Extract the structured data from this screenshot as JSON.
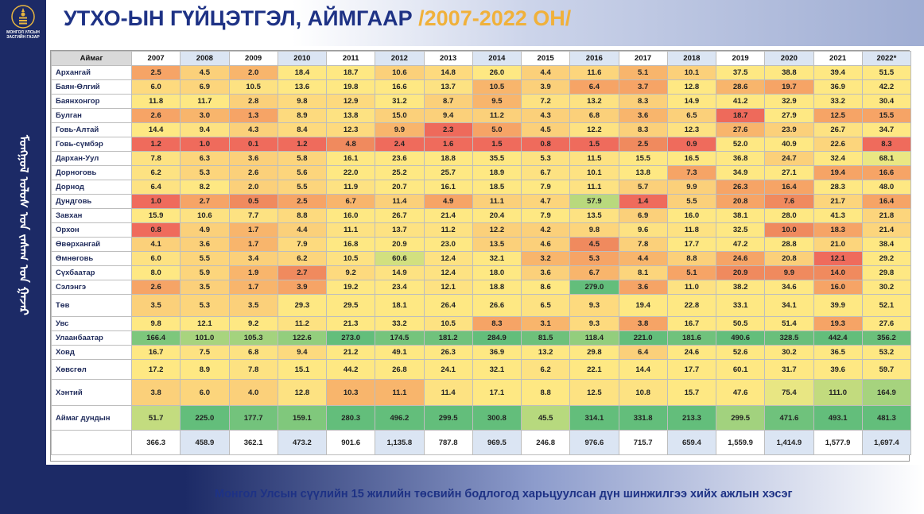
{
  "header": {
    "title": "УТХО-ЫН ГҮЙЦЭТГЭЛ, АЙМГААР",
    "title_years": "/2007-2022 ОН/"
  },
  "logo": {
    "text": "МОНГОЛ УЛСЫН ЗАСГИЙН ГАЗАР",
    "vertical_text": "ᠮᠣᠩᠭᠣᠯ ᠤᠯᠤᠰ ᠤᠨ ᠵᠠᠰᠠᠭ ᠤᠨ ᠭᠠᠵᠠᠷ"
  },
  "footer": {
    "text": "Монгол Улсын сүүлийн 15 жилийн төсвийн бодлогод харьцуулсан дүн шинжилгээ хийх ажлын хэсэг"
  },
  "table": {
    "corner": "Аймаг",
    "years": [
      "2007",
      "2008",
      "2009",
      "2010",
      "2011",
      "2012",
      "2013",
      "2014",
      "2015",
      "2016",
      "2017",
      "2018",
      "2019",
      "2020",
      "2021",
      "2022*"
    ],
    "rows": [
      {
        "name": "Архангай",
        "values": [
          "2.5",
          "4.5",
          "2.0",
          "18.4",
          "18.7",
          "10.6",
          "14.8",
          "26.0",
          "4.4",
          "11.6",
          "5.1",
          "10.1",
          "37.5",
          "38.8",
          "39.4",
          "51.5"
        ],
        "colors": [
          "#f6a466",
          "#fbd07a",
          "#f8b56c",
          "#fee883",
          "#fee883",
          "#fbd07a",
          "#fdda7e",
          "#fee883",
          "#fbd07a",
          "#fcd57c",
          "#f8b56c",
          "#fbd07a",
          "#fee883",
          "#fee883",
          "#fee883",
          "#fee883"
        ]
      },
      {
        "name": "Баян-Өлгий",
        "values": [
          "6.0",
          "6.9",
          "10.5",
          "13.6",
          "19.8",
          "16.6",
          "13.7",
          "10.5",
          "3.9",
          "6.4",
          "3.7",
          "12.8",
          "28.6",
          "19.7",
          "36.9",
          "42.2"
        ],
        "colors": [
          "#fdda7e",
          "#fcd57c",
          "#fde282",
          "#fee883",
          "#fee883",
          "#fee883",
          "#fde282",
          "#f8b56c",
          "#fbd07a",
          "#f6a466",
          "#f6a466",
          "#fee883",
          "#f8b56c",
          "#f6a466",
          "#fee883",
          "#fee883"
        ]
      },
      {
        "name": "Баянхонгор",
        "values": [
          "11.8",
          "11.7",
          "2.8",
          "9.8",
          "12.9",
          "31.2",
          "8.7",
          "9.5",
          "7.2",
          "13.2",
          "8.3",
          "14.9",
          "41.2",
          "32.9",
          "33.2",
          "30.4"
        ],
        "colors": [
          "#fee883",
          "#fee883",
          "#fbd07a",
          "#fdda7e",
          "#fdda7e",
          "#fee883",
          "#fbd07a",
          "#f8b56c",
          "#fde282",
          "#fde282",
          "#fbd07a",
          "#fee883",
          "#fee883",
          "#fee883",
          "#fee883",
          "#fee883"
        ]
      },
      {
        "name": "Булган",
        "values": [
          "2.6",
          "3.0",
          "1.3",
          "8.9",
          "13.8",
          "15.0",
          "9.4",
          "11.2",
          "4.3",
          "6.8",
          "3.6",
          "6.5",
          "18.7",
          "27.9",
          "12.5",
          "15.5"
        ],
        "colors": [
          "#f6a466",
          "#f8b56c",
          "#f6a466",
          "#fdda7e",
          "#fde282",
          "#fbd07a",
          "#fbd07a",
          "#fbd07a",
          "#fbd07a",
          "#fbd07a",
          "#f8b56c",
          "#fbd07a",
          "#ee6a5b",
          "#fee883",
          "#f6a466",
          "#f6a466"
        ]
      },
      {
        "name": "Говь-Алтай",
        "values": [
          "14.4",
          "9.4",
          "4.3",
          "8.4",
          "12.3",
          "9.9",
          "2.3",
          "5.0",
          "4.5",
          "12.2",
          "8.3",
          "12.3",
          "27.6",
          "23.9",
          "26.7",
          "34.7"
        ],
        "colors": [
          "#fee883",
          "#fde282",
          "#fbd07a",
          "#fdda7e",
          "#fdda7e",
          "#f8b56c",
          "#ee6a5b",
          "#f6a466",
          "#fbd07a",
          "#fde282",
          "#fbd07a",
          "#fde282",
          "#f8b56c",
          "#fbd07a",
          "#fde282",
          "#fee883"
        ]
      },
      {
        "name": "Говь-сүмбэр",
        "values": [
          "1.2",
          "1.0",
          "0.1",
          "1.2",
          "4.8",
          "2.4",
          "1.6",
          "1.5",
          "0.8",
          "1.5",
          "2.5",
          "0.9",
          "52.0",
          "40.9",
          "22.6",
          "8.3"
        ],
        "colors": [
          "#ef6b5c",
          "#ef6b5c",
          "#ef6b5c",
          "#ef6b5c",
          "#f08a5e",
          "#ef6b5c",
          "#ef6b5c",
          "#ef6b5c",
          "#ef6b5c",
          "#ef6b5c",
          "#f08a5e",
          "#ef6b5c",
          "#fee883",
          "#fee883",
          "#fcd57c",
          "#ef6b5c"
        ]
      },
      {
        "name": "Дархан-Уул",
        "values": [
          "7.8",
          "6.3",
          "3.6",
          "5.8",
          "16.1",
          "23.6",
          "18.8",
          "35.5",
          "5.3",
          "11.5",
          "15.5",
          "16.5",
          "36.8",
          "24.7",
          "32.4",
          "68.1"
        ],
        "colors": [
          "#fde282",
          "#fcd57c",
          "#fbd07a",
          "#fcd57c",
          "#fee883",
          "#fee883",
          "#fee883",
          "#fee883",
          "#fde282",
          "#fde282",
          "#fee883",
          "#fee883",
          "#fee883",
          "#fbd07a",
          "#fee883",
          "#eae783"
        ]
      },
      {
        "name": "Дорноговь",
        "values": [
          "6.2",
          "5.3",
          "2.6",
          "5.6",
          "22.0",
          "25.2",
          "25.7",
          "18.9",
          "6.7",
          "10.1",
          "13.8",
          "7.3",
          "34.9",
          "27.1",
          "19.4",
          "16.6"
        ],
        "colors": [
          "#fde282",
          "#fcd57c",
          "#fbd07a",
          "#fcd57c",
          "#fee883",
          "#fee883",
          "#fee883",
          "#fee883",
          "#fde282",
          "#fde282",
          "#fee883",
          "#f6a466",
          "#fee883",
          "#fee883",
          "#f6a466",
          "#f6a466"
        ]
      },
      {
        "name": "Дорнод",
        "values": [
          "6.4",
          "8.2",
          "2.0",
          "5.5",
          "11.9",
          "20.7",
          "16.1",
          "18.5",
          "7.9",
          "11.1",
          "5.7",
          "9.9",
          "26.3",
          "16.4",
          "28.3",
          "48.0"
        ],
        "colors": [
          "#fde282",
          "#fee883",
          "#fbd07a",
          "#fcd57c",
          "#fde282",
          "#fee883",
          "#fee883",
          "#fee883",
          "#fee883",
          "#fde282",
          "#fbd07a",
          "#fbd07a",
          "#f6a466",
          "#f6a466",
          "#fee883",
          "#fee883"
        ]
      },
      {
        "name": "Дундговь",
        "values": [
          "1.0",
          "2.7",
          "0.5",
          "2.5",
          "6.7",
          "11.4",
          "4.9",
          "11.1",
          "4.7",
          "57.9",
          "1.4",
          "5.5",
          "20.8",
          "7.6",
          "21.7",
          "16.4"
        ],
        "colors": [
          "#ef6b5c",
          "#f6a466",
          "#f08a5e",
          "#f6a466",
          "#f8b56c",
          "#fbd07a",
          "#f6a466",
          "#fbd07a",
          "#fcd57c",
          "#b9d97d",
          "#ef6b5c",
          "#fbd07a",
          "#f6a466",
          "#f08a5e",
          "#fcd57c",
          "#f6a466"
        ]
      },
      {
        "name": "Завхан",
        "values": [
          "15.9",
          "10.6",
          "7.7",
          "8.8",
          "16.0",
          "26.7",
          "21.4",
          "20.4",
          "7.9",
          "13.5",
          "6.9",
          "16.0",
          "38.1",
          "28.0",
          "41.3",
          "21.8"
        ],
        "colors": [
          "#fee883",
          "#fde282",
          "#fde282",
          "#fdda7e",
          "#fee883",
          "#fee883",
          "#fee883",
          "#fee883",
          "#fee883",
          "#fde282",
          "#fbd07a",
          "#fee883",
          "#fee883",
          "#fee883",
          "#fee883",
          "#fcd57c"
        ]
      },
      {
        "name": "Орхон",
        "values": [
          "0.8",
          "4.9",
          "1.7",
          "4.4",
          "11.1",
          "13.7",
          "11.2",
          "12.2",
          "4.2",
          "9.8",
          "9.6",
          "11.8",
          "32.5",
          "10.0",
          "18.3",
          "21.4"
        ],
        "colors": [
          "#ef6b5c",
          "#fbd07a",
          "#f8b56c",
          "#fbd07a",
          "#fde282",
          "#fde282",
          "#fde282",
          "#fbd07a",
          "#fbd07a",
          "#fcd57c",
          "#fde282",
          "#fde282",
          "#fee883",
          "#f08a5e",
          "#f6a466",
          "#fcd57c"
        ]
      },
      {
        "name": "Өвөрхангай",
        "values": [
          "4.1",
          "3.6",
          "1.7",
          "7.9",
          "16.8",
          "20.9",
          "23.0",
          "13.5",
          "4.6",
          "4.5",
          "7.8",
          "17.7",
          "47.2",
          "28.8",
          "21.0",
          "38.4"
        ],
        "colors": [
          "#fbd07a",
          "#fbd07a",
          "#f8b56c",
          "#fdda7e",
          "#fee883",
          "#fee883",
          "#fee883",
          "#fbd07a",
          "#fbd07a",
          "#f08a5e",
          "#fbd07a",
          "#fee883",
          "#fee883",
          "#fee883",
          "#fcd57c",
          "#fee883"
        ]
      },
      {
        "name": "Өмнөговь",
        "values": [
          "6.0",
          "5.5",
          "3.4",
          "6.2",
          "10.5",
          "60.6",
          "12.4",
          "32.1",
          "3.2",
          "5.3",
          "4.4",
          "8.8",
          "24.6",
          "20.8",
          "12.1",
          "29.2"
        ],
        "colors": [
          "#fde282",
          "#fcd57c",
          "#fbd07a",
          "#fcd57c",
          "#fde282",
          "#d2e07f",
          "#fde282",
          "#fee883",
          "#f8b56c",
          "#f6a466",
          "#f8b56c",
          "#fbd07a",
          "#f6a466",
          "#fbd07a",
          "#ef6b5c",
          "#fee883"
        ]
      },
      {
        "name": "Сүхбаатар",
        "values": [
          "8.0",
          "5.9",
          "1.9",
          "2.7",
          "9.2",
          "14.9",
          "12.4",
          "18.0",
          "3.6",
          "6.7",
          "8.1",
          "5.1",
          "20.9",
          "9.9",
          "14.0",
          "29.8"
        ],
        "colors": [
          "#fee883",
          "#fcd57c",
          "#f8b56c",
          "#f08a5e",
          "#fdda7e",
          "#fde282",
          "#fde282",
          "#fee883",
          "#fbd07a",
          "#f8b56c",
          "#fcd57c",
          "#f6a466",
          "#f08a5e",
          "#f08a5e",
          "#f08a5e",
          "#fee883"
        ]
      },
      {
        "name": "Сэлэнгэ",
        "values": [
          "2.6",
          "3.5",
          "1.7",
          "3.9",
          "19.2",
          "23.4",
          "12.1",
          "18.8",
          "8.6",
          "279.0",
          "3.6",
          "11.0",
          "38.2",
          "34.6",
          "16.0",
          "30.2"
        ],
        "colors": [
          "#f6a466",
          "#fbd07a",
          "#f8b56c",
          "#f6a466",
          "#fee883",
          "#fee883",
          "#fde282",
          "#fee883",
          "#fee883",
          "#63be7b",
          "#f6a466",
          "#fde282",
          "#fee883",
          "#fee883",
          "#f6a466",
          "#fee883"
        ]
      },
      {
        "name": "Төв",
        "values": [
          "3.5",
          "5.3",
          "3.5",
          "29.3",
          "29.5",
          "18.1",
          "26.4",
          "26.6",
          "6.5",
          "9.3",
          "19.4",
          "22.8",
          "33.1",
          "34.1",
          "39.9",
          "52.1"
        ],
        "colors": [
          "#fbd07a",
          "#fcd57c",
          "#fbd07a",
          "#fee883",
          "#fee883",
          "#fee883",
          "#fee883",
          "#fee883",
          "#fde282",
          "#fdda7e",
          "#fee883",
          "#fee883",
          "#fee883",
          "#fee883",
          "#fee883",
          "#fee883"
        ]
      },
      {
        "name": "Увс",
        "values": [
          "9.8",
          "12.1",
          "9.2",
          "11.2",
          "21.3",
          "33.2",
          "10.5",
          "8.3",
          "3.1",
          "9.3",
          "3.8",
          "16.7",
          "50.5",
          "51.4",
          "19.3",
          "27.6"
        ],
        "colors": [
          "#fee883",
          "#fee883",
          "#fee883",
          "#fde282",
          "#fee883",
          "#fee883",
          "#fde282",
          "#f6a466",
          "#f8b56c",
          "#fdda7e",
          "#f6a466",
          "#fee883",
          "#fee883",
          "#fee883",
          "#f6a466",
          "#fee883"
        ]
      },
      {
        "name": "Улаанбаатар",
        "values": [
          "166.4",
          "101.0",
          "105.3",
          "122.6",
          "273.0",
          "174.5",
          "181.2",
          "284.9",
          "81.5",
          "118.4",
          "221.0",
          "181.6",
          "490.6",
          "328.5",
          "442.4",
          "356.2"
        ],
        "colors": [
          "#7dc77c",
          "#a8d47e",
          "#a4d37e",
          "#93ce7d",
          "#63be7b",
          "#75c47c",
          "#70c27c",
          "#63be7b",
          "#6ec17b",
          "#93ce7d",
          "#63be7b",
          "#70c27c",
          "#63be7b",
          "#69bf7b",
          "#63be7b",
          "#6bc07b"
        ]
      },
      {
        "name": "Ховд",
        "values": [
          "16.7",
          "7.5",
          "6.8",
          "9.4",
          "21.2",
          "49.1",
          "26.3",
          "36.9",
          "13.2",
          "29.8",
          "6.4",
          "24.6",
          "52.6",
          "30.2",
          "36.5",
          "53.2"
        ],
        "colors": [
          "#fee883",
          "#fde282",
          "#fde282",
          "#fdda7e",
          "#fee883",
          "#fee883",
          "#fee883",
          "#fee883",
          "#fee883",
          "#fee883",
          "#fbd07a",
          "#fee883",
          "#fee883",
          "#fee883",
          "#fee883",
          "#fee883"
        ]
      },
      {
        "name": "Хөвсгөл",
        "values": [
          "17.2",
          "8.9",
          "7.8",
          "15.1",
          "44.2",
          "26.8",
          "24.1",
          "32.1",
          "6.2",
          "22.1",
          "14.4",
          "17.7",
          "60.1",
          "31.7",
          "39.6",
          "59.7"
        ],
        "colors": [
          "#fee883",
          "#fee883",
          "#fde282",
          "#fee883",
          "#fee883",
          "#fee883",
          "#fee883",
          "#fee883",
          "#fde282",
          "#fee883",
          "#fee883",
          "#fee883",
          "#fee883",
          "#fee883",
          "#fee883",
          "#fee883"
        ]
      },
      {
        "name": "Хэнтий",
        "values": [
          "3.8",
          "6.0",
          "4.0",
          "12.8",
          "10.3",
          "11.1",
          "11.4",
          "17.1",
          "8.8",
          "12.5",
          "10.8",
          "15.7",
          "47.6",
          "75.4",
          "111.0",
          "164.9"
        ],
        "colors": [
          "#fbd07a",
          "#fcd57c",
          "#fbd07a",
          "#fde282",
          "#f8b56c",
          "#f8b56c",
          "#fde282",
          "#fee883",
          "#fee883",
          "#fde282",
          "#fde282",
          "#fee883",
          "#fee883",
          "#e8e683",
          "#c2db7e",
          "#a6d37e"
        ]
      },
      {
        "name": "Аймаг дундын",
        "values": [
          "51.7",
          "225.0",
          "177.7",
          "159.1",
          "280.3",
          "496.2",
          "299.5",
          "300.8",
          "45.5",
          "314.1",
          "331.8",
          "213.3",
          "299.5",
          "471.6",
          "493.1",
          "481.3"
        ],
        "colors": [
          "#c3dc7f",
          "#63be7b",
          "#73c37c",
          "#80c87c",
          "#63be7b",
          "#63be7b",
          "#63be7b",
          "#63be7b",
          "#b7d97e",
          "#63be7b",
          "#63be7b",
          "#63be7b",
          "#a2d27e",
          "#6fc27c",
          "#63be7b",
          "#63be7b"
        ]
      }
    ],
    "totals": [
      "366.3",
      "458.9",
      "362.1",
      "473.2",
      "901.6",
      "1,135.8",
      "787.8",
      "969.5",
      "246.8",
      "976.6",
      "715.7",
      "659.4",
      "1,559.9",
      "1,414.9",
      "1,577.9",
      "1,697.4"
    ]
  }
}
